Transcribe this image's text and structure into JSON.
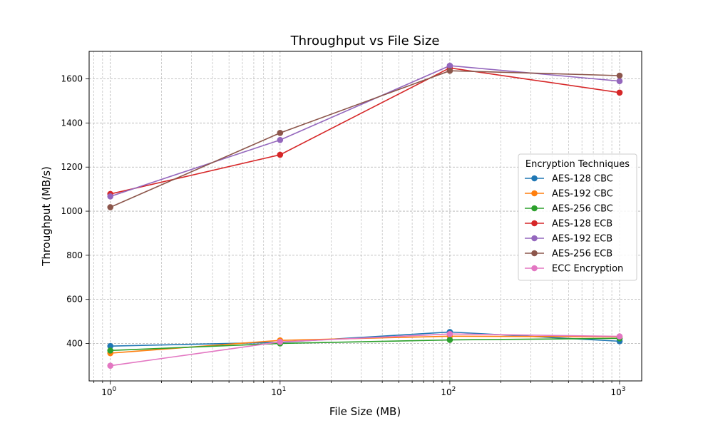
{
  "chart_data": {
    "type": "line",
    "title": "Throughput vs File Size",
    "xlabel": "File Size (MB)",
    "ylabel": "Throughput (MB/s)",
    "xscale": "log",
    "x": [
      1,
      10,
      100,
      1000
    ],
    "xlim": [
      0.75,
      1350
    ],
    "ylim": [
      230,
      1725
    ],
    "xticks": [
      1,
      10,
      100,
      1000
    ],
    "xtick_labels": [
      "10^0",
      "10^1",
      "10^2",
      "10^3"
    ],
    "yticks": [
      400,
      600,
      800,
      1000,
      1200,
      1400,
      1600
    ],
    "grid": true,
    "legend": {
      "title": "Encryption Techniques",
      "placement": "center-right"
    },
    "series": [
      {
        "name": "AES-128 CBC",
        "color": "#1f77b4",
        "values": [
          388,
          405,
          452,
          410
        ]
      },
      {
        "name": "AES-192 CBC",
        "color": "#ff7f0e",
        "values": [
          356,
          414,
          433,
          430
        ]
      },
      {
        "name": "AES-256 CBC",
        "color": "#2ca02c",
        "values": [
          368,
          400,
          416,
          423
        ]
      },
      {
        "name": "AES-128 ECB",
        "color": "#d62728",
        "values": [
          1078,
          1256,
          1650,
          1538
        ]
      },
      {
        "name": "AES-192 ECB",
        "color": "#9467bd",
        "values": [
          1067,
          1323,
          1660,
          1590
        ]
      },
      {
        "name": "AES-256 ECB",
        "color": "#8c564b",
        "values": [
          1018,
          1355,
          1637,
          1615
        ]
      },
      {
        "name": "ECC Encryption",
        "color": "#e377c2",
        "values": [
          299,
          407,
          443,
          432
        ]
      }
    ]
  }
}
